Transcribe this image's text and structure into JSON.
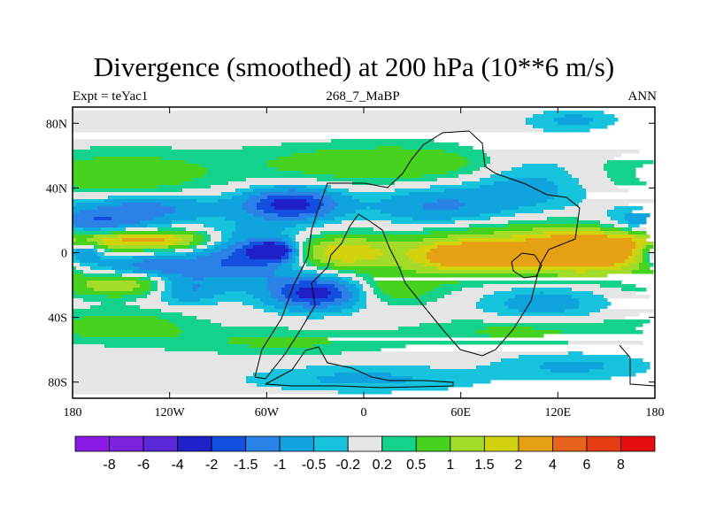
{
  "title": "Divergence (smoothed) at 200 hPa (10**6 m/s)",
  "left_label": "Expt = teYac1",
  "center_label": "268_7_MaBP",
  "right_label": "ANN",
  "axes": {
    "lat_ticks": [
      "80N",
      "40N",
      "0",
      "40S",
      "80S"
    ],
    "lat_values": [
      80,
      40,
      0,
      -40,
      -80
    ],
    "lon_ticks": [
      "180",
      "120W",
      "60W",
      "0",
      "60E",
      "120E",
      "180"
    ],
    "lon_values": [
      -180,
      -120,
      -60,
      0,
      60,
      120,
      180
    ],
    "lat_range": [
      -90,
      90
    ],
    "lon_range": [
      -180,
      180
    ]
  },
  "colorbar": {
    "colors": [
      "#8b1ae6",
      "#7a22de",
      "#5a28d8",
      "#2020c8",
      "#1450e0",
      "#2a82e6",
      "#10a4de",
      "#16c2dc",
      "#e6e6e6",
      "#14d28c",
      "#46d21e",
      "#a2dc28",
      "#d2d20e",
      "#e6a014",
      "#e6641c",
      "#e63c14",
      "#e60e0e"
    ],
    "labels": [
      "-8",
      "-6",
      "-4",
      "-2",
      "-1.5",
      "-1",
      "-0.5",
      "-0.2",
      "0.2",
      "0.5",
      "1",
      "1.5",
      "2",
      "4",
      "6",
      "8"
    ]
  },
  "chart_data": {
    "type": "heatmap",
    "title": "Divergence (smoothed) at 200 hPa (10**6 m/s)",
    "subtitle": "268_7_MaBP",
    "experiment": "Expt = teYac1",
    "season": "ANN",
    "variable": "Divergence (smoothed) at 200 hPa",
    "units": "10**6 m/s",
    "levels": [
      -8,
      -6,
      -4,
      -2,
      -1.5,
      -1,
      -0.5,
      -0.2,
      0.2,
      0.5,
      1,
      1.5,
      2,
      4,
      6,
      8
    ],
    "xlabel": "",
    "ylabel": "",
    "xlim": [
      -180,
      180
    ],
    "ylim": [
      -90,
      90
    ],
    "features": [
      {
        "lon": -150,
        "lat": 48,
        "dlon": 55,
        "dlat": 14,
        "value": 0.9
      },
      {
        "lon": 20,
        "lat": 55,
        "dlon": 90,
        "dlat": 12,
        "value": 1.0
      },
      {
        "lon": -135,
        "lat": 28,
        "dlon": 45,
        "dlat": 8,
        "value": -1.2
      },
      {
        "lon": -45,
        "lat": 30,
        "dlon": 30,
        "dlat": 10,
        "value": -2.3
      },
      {
        "lon": 45,
        "lat": 28,
        "dlon": 40,
        "dlat": 12,
        "value": -1.1
      },
      {
        "lon": 100,
        "lat": 45,
        "dlon": 40,
        "dlat": 22,
        "value": -0.8
      },
      {
        "lon": -170,
        "lat": 18,
        "dlon": 40,
        "dlat": 8,
        "value": -1.5
      },
      {
        "lon": -160,
        "lat": 8,
        "dlon": 35,
        "dlat": 6,
        "value": 1.6
      },
      {
        "lon": -120,
        "lat": 8,
        "dlon": 30,
        "dlat": 6,
        "value": 1.6
      },
      {
        "lon": 140,
        "lat": 1,
        "dlon": 45,
        "dlat": 14,
        "value": 3.0
      },
      {
        "lon": 60,
        "lat": -2,
        "dlon": 30,
        "dlat": 9,
        "value": 1.7
      },
      {
        "lon": -15,
        "lat": 0,
        "dlon": 32,
        "dlat": 10,
        "value": 1.9
      },
      {
        "lon": 75,
        "lat": 0,
        "dlon": 60,
        "dlat": 18,
        "value": 1.3
      },
      {
        "lon": -70,
        "lat": -2,
        "dlon": 32,
        "dlat": 16,
        "value": -1.6
      },
      {
        "lon": -55,
        "lat": 1,
        "dlon": 14,
        "dlat": 6,
        "value": -2.4
      },
      {
        "lon": -175,
        "lat": 1,
        "dlon": 14,
        "dlat": 8,
        "value": -2.2
      },
      {
        "lon": -130,
        "lat": -8,
        "dlon": 40,
        "dlat": 7,
        "value": -1.3
      },
      {
        "lon": -150,
        "lat": -20,
        "dlon": 35,
        "dlat": 7,
        "value": 1.4
      },
      {
        "lon": -30,
        "lat": -25,
        "dlon": 28,
        "dlat": 10,
        "value": -2.3
      },
      {
        "lon": -110,
        "lat": -22,
        "dlon": 22,
        "dlat": 9,
        "value": -1.2
      },
      {
        "lon": 20,
        "lat": -22,
        "dlon": 25,
        "dlat": 10,
        "value": 0.8
      },
      {
        "lon": 110,
        "lat": -30,
        "dlon": 40,
        "dlat": 14,
        "value": -0.8
      },
      {
        "lon": -150,
        "lat": -45,
        "dlon": 45,
        "dlat": 10,
        "value": 0.8
      },
      {
        "lon": -50,
        "lat": -55,
        "dlon": 70,
        "dlat": 8,
        "value": 0.6
      },
      {
        "lon": 100,
        "lat": -48,
        "dlon": 60,
        "dlat": 8,
        "value": 0.7
      },
      {
        "lon": 0,
        "lat": -78,
        "dlon": 70,
        "dlat": 8,
        "value": -0.6
      },
      {
        "lon": 130,
        "lat": -70,
        "dlon": 45,
        "dlat": 8,
        "value": -0.6
      },
      {
        "lon": 130,
        "lat": 82,
        "dlon": 25,
        "dlat": 6,
        "value": -0.6
      }
    ]
  }
}
